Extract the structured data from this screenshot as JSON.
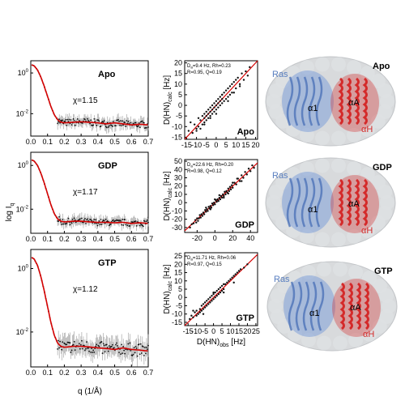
{
  "colors": {
    "fit": "#d40000",
    "points": "#111111",
    "errorbars": "#9a9a9a",
    "ras": "#7fa0d8",
    "ras_text": "#5a7fc0",
    "helix": "#d42a2a",
    "envelope": "#d8dadc"
  },
  "saxs_axis": {
    "xlabel": "q (1/Å)",
    "ylabel": "log I",
    "ylabel_sub": "q",
    "xlim": [
      0.0,
      0.7
    ],
    "ylim": [
      -3.1,
      0.6
    ],
    "xticks": [
      "0.0",
      "0.1",
      "0.2",
      "0.3",
      "0.4",
      "0.5",
      "0.6",
      "0.7"
    ],
    "yticks": [
      {
        "v": 0,
        "base": "10",
        "exp": "0"
      },
      {
        "v": -2,
        "base": "10",
        "exp": "-2"
      }
    ]
  },
  "rdc_axes": {
    "xlabel": "D(HN)",
    "xlabel_sub": "obs",
    "xlabel_unit": " [Hz]",
    "ylabel": "D(HN)",
    "ylabel_sub": "calc",
    "ylabel_unit": " [Hz]"
  },
  "chart_data": [
    {
      "type": "line",
      "panel": "saxs",
      "label": "Apo",
      "chi": "χ=1.15",
      "series": [
        {
          "kind": "fit",
          "x": [
            0.005,
            0.02,
            0.04,
            0.06,
            0.08,
            0.1,
            0.12,
            0.14,
            0.16,
            0.18,
            0.2,
            0.22,
            0.25,
            0.3,
            0.35,
            0.4,
            0.45,
            0.5,
            0.55,
            0.6,
            0.65,
            0.7
          ],
          "values": [
            0.4,
            0.35,
            0.15,
            -0.2,
            -0.65,
            -1.15,
            -1.65,
            -2.05,
            -2.3,
            -2.42,
            -2.45,
            -2.44,
            -2.42,
            -2.4,
            -2.42,
            -2.45,
            -2.5,
            -2.45,
            -2.5,
            -2.55,
            -2.52,
            -2.55
          ]
        },
        {
          "kind": "points",
          "noise": 0.18,
          "x_start": 0.16,
          "x_end": 0.7,
          "n": 110
        }
      ]
    },
    {
      "type": "line",
      "panel": "saxs",
      "label": "GDP",
      "chi": "χ=1.17",
      "series": [
        {
          "kind": "fit",
          "x": [
            0.005,
            0.02,
            0.04,
            0.06,
            0.08,
            0.1,
            0.12,
            0.14,
            0.16,
            0.18,
            0.2,
            0.22,
            0.25,
            0.3,
            0.35,
            0.4,
            0.45,
            0.5,
            0.55,
            0.6,
            0.65,
            0.7
          ],
          "values": [
            0.25,
            0.2,
            0.0,
            -0.35,
            -0.8,
            -1.3,
            -1.8,
            -2.2,
            -2.45,
            -2.55,
            -2.58,
            -2.57,
            -2.55,
            -2.55,
            -2.58,
            -2.6,
            -2.6,
            -2.62,
            -2.6,
            -2.65,
            -2.62,
            -2.65
          ]
        },
        {
          "kind": "points",
          "noise": 0.15,
          "x_start": 0.16,
          "x_end": 0.7,
          "n": 110
        }
      ]
    },
    {
      "type": "line",
      "panel": "saxs",
      "label": "GTP",
      "chi": "χ=1.12",
      "series": [
        {
          "kind": "fit",
          "x": [
            0.005,
            0.02,
            0.04,
            0.06,
            0.08,
            0.1,
            0.12,
            0.14,
            0.16,
            0.18,
            0.2,
            0.22,
            0.25,
            0.3,
            0.35,
            0.4,
            0.45,
            0.5,
            0.55,
            0.6,
            0.65,
            0.7
          ],
          "values": [
            0.35,
            0.3,
            0.1,
            -0.25,
            -0.7,
            -1.2,
            -1.7,
            -2.1,
            -2.35,
            -2.45,
            -2.48,
            -2.47,
            -2.45,
            -2.45,
            -2.47,
            -2.5,
            -2.52,
            -2.55,
            -2.5,
            -2.55,
            -2.57,
            -2.6
          ]
        },
        {
          "kind": "points",
          "noise": 0.2,
          "x_start": 0.16,
          "x_end": 0.7,
          "n": 110
        }
      ]
    },
    {
      "type": "scatter",
      "panel": "rdc",
      "label": "Apo",
      "stats_line1": "D =9.4 Hz, Rh=0.23",
      "stats_sub": "a",
      "stats_line2": "R=0.95, Q=0.19",
      "xlim": [
        -16,
        21
      ],
      "ylim": [
        -16,
        21
      ],
      "xticks": [
        -15,
        -10,
        -5,
        0,
        5,
        10,
        15,
        20
      ],
      "yticks": [
        -15,
        -10,
        -5,
        0,
        5,
        10,
        15,
        20
      ],
      "x": [
        -14,
        -12,
        -11,
        -10,
        -9,
        -9,
        -8,
        -8,
        -7,
        -7,
        -6,
        -6,
        -6,
        -5,
        -5,
        -5,
        -4,
        -4,
        -4,
        -3,
        -3,
        -3,
        -2,
        -2,
        -2,
        -1,
        -1,
        -1,
        0,
        0,
        0,
        1,
        1,
        1,
        2,
        2,
        2,
        3,
        3,
        3,
        4,
        4,
        5,
        5,
        6,
        6,
        7,
        7,
        8,
        8,
        9,
        10,
        10,
        11,
        12,
        13,
        14,
        15,
        16,
        17,
        -13,
        -10,
        -6,
        -3,
        0,
        3,
        6,
        9,
        12
      ],
      "y": [
        -12,
        -13,
        -9,
        -11,
        -6,
        -10,
        -7,
        -11,
        -5,
        -9,
        -4,
        -8,
        -6,
        -3,
        -7,
        -5,
        -2,
        -6,
        -4,
        -1,
        -5,
        -3,
        0,
        -4,
        -2,
        1,
        -3,
        -1,
        2,
        -2,
        0,
        3,
        -1,
        1,
        4,
        0,
        2,
        5,
        1,
        3,
        6,
        2,
        7,
        3,
        8,
        4,
        9,
        5,
        10,
        6,
        11,
        12,
        8,
        13,
        10,
        15,
        12,
        16,
        14,
        18,
        -8,
        -12,
        -9,
        -6,
        -4,
        5,
        2,
        6,
        9
      ]
    },
    {
      "type": "scatter",
      "panel": "rdc",
      "label": "GDP",
      "stats_line1": "D =22.6 Hz, Rh=0.20",
      "stats_sub": "a",
      "stats_line2": "R=0.98, Q=0.12",
      "xlim": [
        -34,
        48
      ],
      "ylim": [
        -36,
        52
      ],
      "xticks": [
        -20,
        0,
        20,
        40
      ],
      "yticks": [
        -30,
        -20,
        -10,
        0,
        10,
        20,
        30,
        40,
        50
      ],
      "x": [
        -28,
        -26,
        -24,
        -22,
        -21,
        -20,
        -18,
        -17,
        -16,
        -15,
        -14,
        -13,
        -12,
        -11,
        -10,
        -9,
        -8,
        -7,
        -6,
        -5,
        -4,
        -3,
        -2,
        -1,
        0,
        1,
        2,
        3,
        4,
        5,
        6,
        7,
        8,
        9,
        10,
        11,
        12,
        13,
        14,
        15,
        16,
        17,
        18,
        19,
        20,
        22,
        24,
        26,
        28,
        30,
        32,
        34,
        36,
        38,
        40,
        42,
        44,
        -10,
        0,
        10,
        20,
        30,
        -19,
        -5,
        5,
        15,
        25
      ],
      "y": [
        -30,
        -26,
        -25,
        -21,
        -24,
        -19,
        -19,
        -15,
        -18,
        -14,
        -16,
        -12,
        -14,
        -9,
        -11,
        -8,
        -10,
        -5,
        -7,
        -4,
        -6,
        -1,
        -3,
        0,
        -2,
        3,
        1,
        4,
        2,
        6,
        4,
        8,
        6,
        10,
        8,
        13,
        10,
        14,
        12,
        17,
        14,
        19,
        16,
        21,
        18,
        24,
        22,
        29,
        26,
        33,
        30,
        37,
        34,
        41,
        38,
        45,
        42,
        -6,
        4,
        6,
        24,
        26,
        -22,
        -8,
        9,
        11,
        29
      ]
    },
    {
      "type": "scatter",
      "panel": "rdc",
      "label": "GTP",
      "stats_line1": "D =11.71 Hz, Rh=0.06",
      "stats_sub": "a",
      "stats_line2": "R=0.97, Q=0.15",
      "xlim": [
        -17,
        26
      ],
      "ylim": [
        -17,
        27
      ],
      "xticks": [
        -15,
        -10,
        -5,
        0,
        5,
        10,
        15,
        20,
        25
      ],
      "yticks": [
        -15,
        -10,
        -5,
        0,
        5,
        10,
        15,
        20,
        25
      ],
      "x": [
        -14,
        -13,
        -12,
        -11,
        -10,
        -10,
        -9,
        -8,
        -8,
        -7,
        -7,
        -6,
        -6,
        -5,
        -5,
        -4,
        -4,
        -3,
        -3,
        -2,
        -2,
        -1,
        -1,
        0,
        0,
        1,
        1,
        2,
        2,
        3,
        3,
        4,
        4,
        5,
        5,
        6,
        6,
        7,
        8,
        9,
        10,
        11,
        12,
        13,
        14,
        15,
        16,
        18,
        20,
        -12,
        -6,
        0,
        6,
        12
      ],
      "y": [
        -13,
        -11,
        -12,
        -9,
        -11,
        -8,
        -10,
        -7,
        -9,
        -5,
        -8,
        -4,
        -7,
        -3,
        -6,
        -2,
        -5,
        -1,
        -4,
        0,
        -3,
        1,
        -2,
        2,
        -1,
        3,
        0,
        4,
        1,
        5,
        2,
        6,
        3,
        7,
        4,
        8,
        5,
        8,
        9,
        10,
        11,
        12,
        13,
        14,
        15,
        16,
        17,
        18,
        20,
        -8,
        -10,
        3,
        3,
        9
      ]
    }
  ],
  "structures": [
    {
      "label": "Apo",
      "ras": "Ras",
      "a1": "α1",
      "aA": "αA",
      "aH": "αH"
    },
    {
      "label": "GDP",
      "ras": "Ras",
      "a1": "α1",
      "aA": "αA",
      "aH": "αH"
    },
    {
      "label": "GTP",
      "ras": "Ras",
      "a1": "α1",
      "aA": "αA",
      "aH": "αH"
    }
  ]
}
